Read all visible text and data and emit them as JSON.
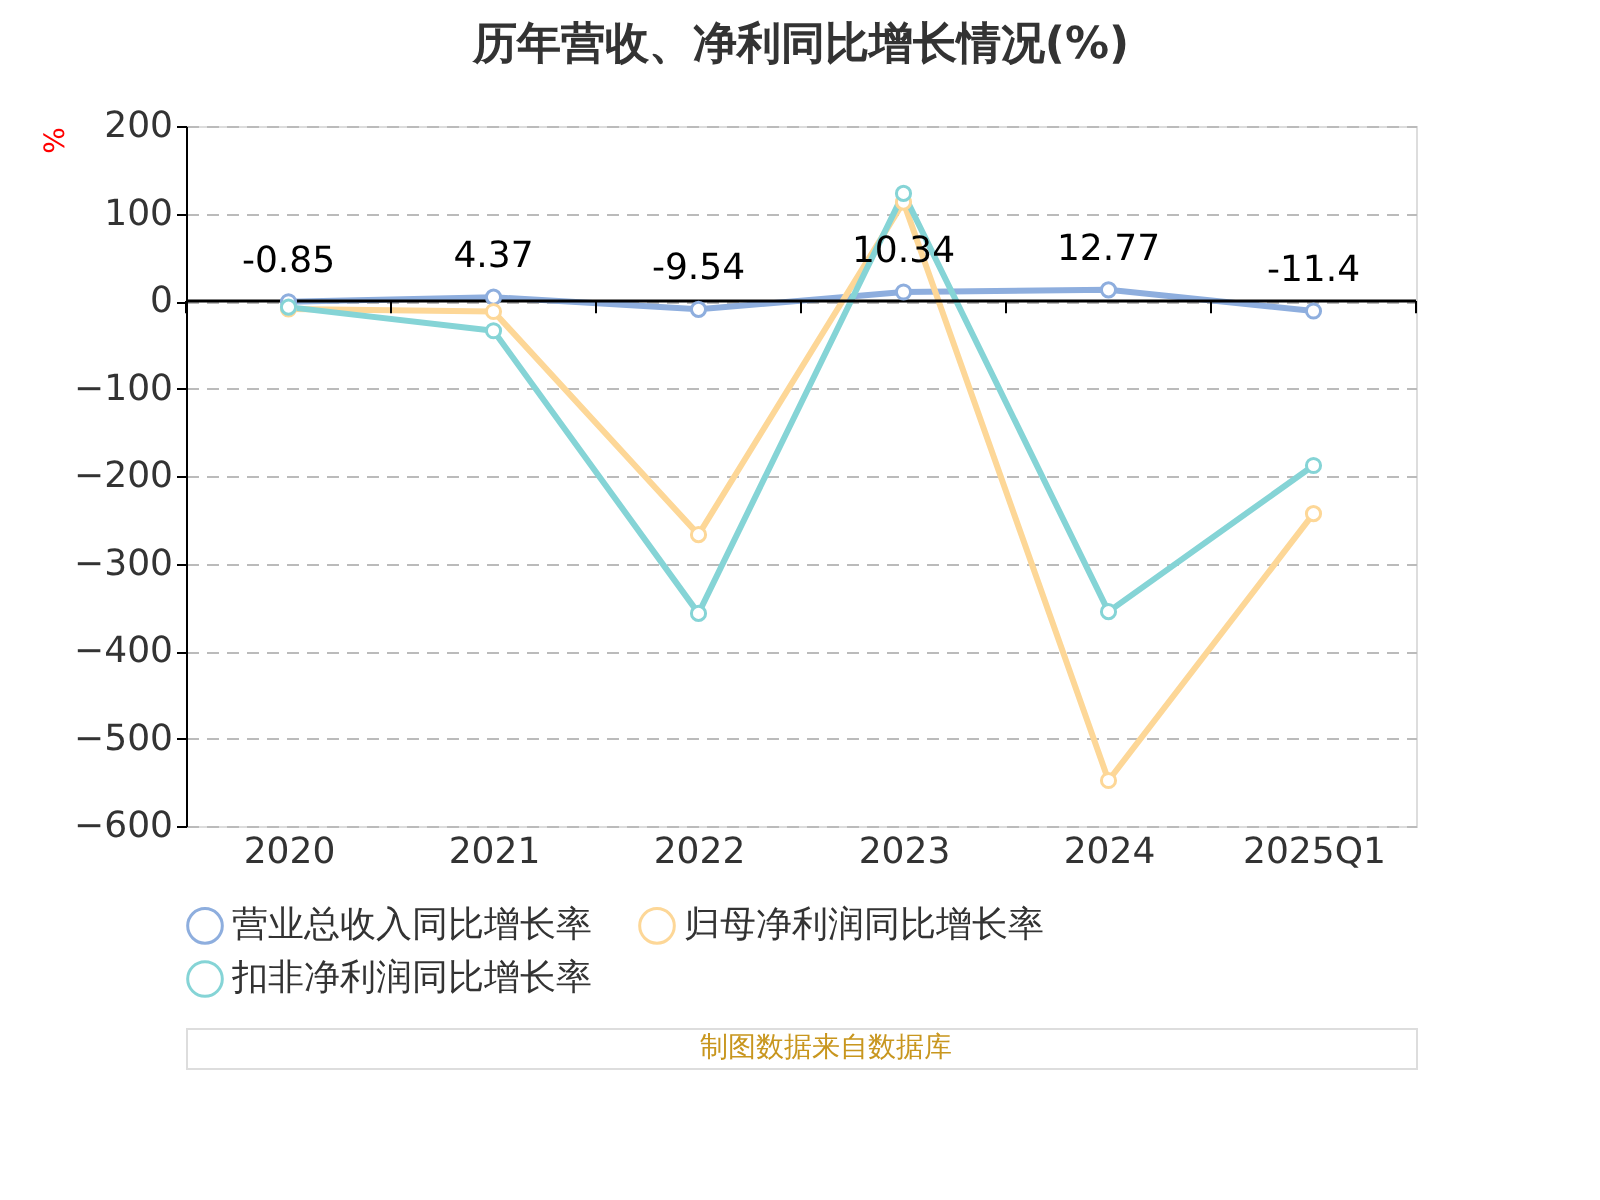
{
  "chart_data": {
    "type": "line",
    "title": "历年营收、净利同比增长情况(%)",
    "ylabel": "%",
    "categories": [
      "2020",
      "2021",
      "2022",
      "2023",
      "2024",
      "2025Q1"
    ],
    "series": [
      {
        "name": "营业总收入同比增长率",
        "color": "#8eaede",
        "values": [
          -0.85,
          4.37,
          -9.54,
          10.34,
          12.77,
          -11.4
        ],
        "value_labels": [
          "-0.85",
          "4.37",
          "-9.54",
          "10.34",
          "12.77",
          "-11.4"
        ]
      },
      {
        "name": "归母净利润同比增长率",
        "color": "#fdd797",
        "values": [
          -9,
          -12,
          -267,
          113,
          -548,
          -243
        ]
      },
      {
        "name": "扣非净利润同比增长率",
        "color": "#85d4d6",
        "values": [
          -7,
          -34,
          -357,
          123,
          -355,
          -188
        ]
      }
    ],
    "ylim": [
      -600,
      200
    ],
    "yticks": [
      -600,
      -500,
      -400,
      -300,
      -200,
      -100,
      0,
      100,
      200
    ],
    "grid": "y",
    "legend": "bottom",
    "marker": "circle",
    "line_style": "solid",
    "annotations": [
      "制图数据来自数据库"
    ]
  }
}
